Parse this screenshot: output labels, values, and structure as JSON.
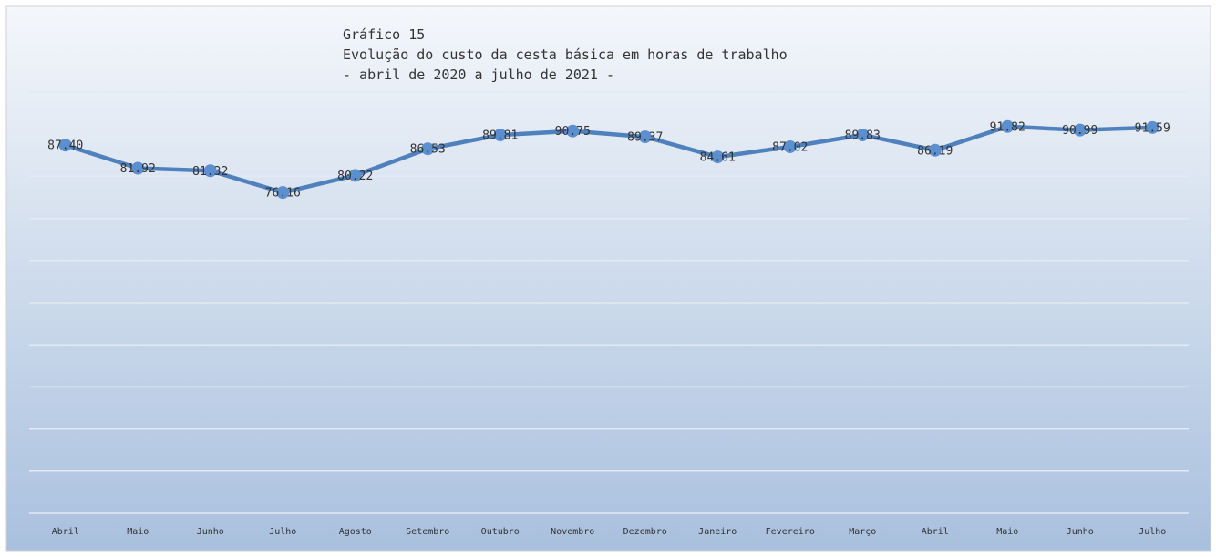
{
  "chart_data": {
    "type": "line",
    "title": "Gráfico 15",
    "subtitle": [
      "Evolução do custo da cesta básica em horas de trabalho",
      "- abril de 2020 a julho de 2021 -"
    ],
    "categories": [
      "Abril",
      "Maio",
      "Junho",
      "Julho",
      "Agosto",
      "Setembro",
      "Outubro",
      "Novembro",
      "Dezembro",
      "Janeiro",
      "Fevereiro",
      "Março",
      "Abril",
      "Maio",
      "Junho",
      "Julho"
    ],
    "series": [
      {
        "color": "#4f81bd",
        "values": [
          87.4,
          81.92,
          81.32,
          76.16,
          80.22,
          86.53,
          89.81,
          90.75,
          89.37,
          84.61,
          87.02,
          89.83,
          86.19,
          91.82,
          90.99,
          91.59
        ],
        "value_labels": [
          "87.40",
          "81.92",
          "81.32",
          "76.16",
          "80.22",
          "86.53",
          "89.81",
          "90.75",
          "89.37",
          "84.61",
          "87.02",
          "89.83",
          "86.19",
          "91.82",
          "90.99",
          "91.59"
        ]
      }
    ],
    "ylim": [
      0,
      100
    ],
    "yticks": [
      0,
      10,
      20,
      30,
      40,
      50,
      60,
      70,
      80,
      90,
      100
    ],
    "grid": true
  }
}
